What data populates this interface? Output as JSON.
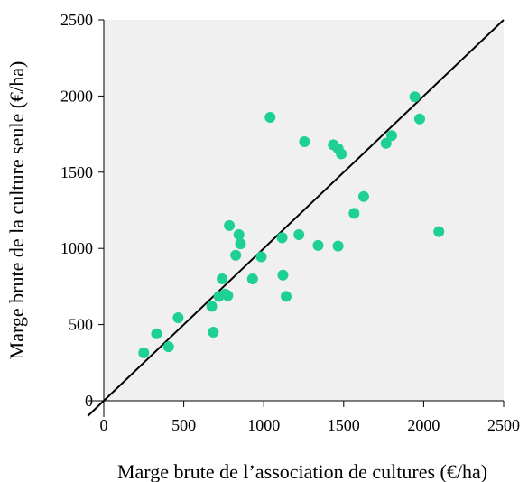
{
  "chart_data": {
    "type": "scatter",
    "title": "",
    "xlabel": "Marge brute de l’association  de cultures (€/ha)",
    "ylabel": "Marge brute de la culture seule (€/ha)",
    "xlim": [
      0,
      2500
    ],
    "ylim": [
      0,
      2500
    ],
    "xticks": [
      "0",
      "500",
      "1000",
      "1500",
      "2000",
      "2500"
    ],
    "yticks": [
      "0",
      "500",
      "1000",
      "1500",
      "2000",
      "2500"
    ],
    "grid": false,
    "legend": "none",
    "colors": {
      "points": "#1ecf96",
      "line": "#000000",
      "plot_background": "#f0f0f0"
    },
    "reference_line": {
      "label": "y = x",
      "from": [
        0,
        0
      ],
      "to": [
        2500,
        2500
      ]
    },
    "series": [
      {
        "x": [
          250,
          330,
          405,
          465,
          675,
          685,
          720,
          740,
          760,
          775,
          785,
          825,
          845,
          855,
          930,
          985,
          1040,
          1115,
          1120,
          1140,
          1220,
          1255,
          1340,
          1435,
          1465,
          1465,
          1485,
          1565,
          1625,
          1765,
          1800,
          1945,
          1975,
          2095
        ],
        "y": [
          315,
          440,
          355,
          545,
          620,
          450,
          685,
          800,
          700,
          690,
          1150,
          955,
          1090,
          1030,
          800,
          945,
          1860,
          1070,
          825,
          685,
          1090,
          1700,
          1020,
          1680,
          1655,
          1015,
          1620,
          1230,
          1340,
          1690,
          1740,
          1995,
          1850,
          1110
        ]
      }
    ]
  }
}
